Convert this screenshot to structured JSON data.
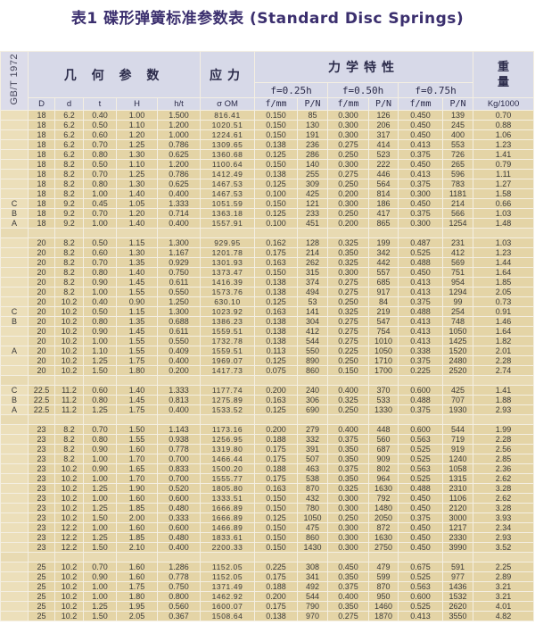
{
  "title": "表1  碟形弹簧标准参数表 (Standard Disc Springs)",
  "header": {
    "standard": "GB/T 1972",
    "geometry": "几 何 参 数",
    "stress": "应力",
    "mechanics": "力学特性",
    "weight": "重量",
    "load_cases": [
      "f=0.25h",
      "f=0.50h",
      "f=0.75h"
    ],
    "columns": [
      "D",
      "d",
      "t",
      "H",
      "h/t",
      "σ OM",
      "f/mm",
      "P/N",
      "f/mm",
      "P/N",
      "f/mm",
      "P/N",
      "Kg/1000"
    ]
  },
  "groups": [
    {
      "rows": [
        [
          "",
          "18",
          "6.2",
          "0.40",
          "1.00",
          "1.500",
          "816.41",
          "0.150",
          "85",
          "0.300",
          "126",
          "0.450",
          "139",
          "0.70"
        ],
        [
          "",
          "18",
          "6.2",
          "0.50",
          "1.10",
          "1.200",
          "1020.51",
          "0.150",
          "130",
          "0.300",
          "206",
          "0.450",
          "245",
          "0.88"
        ],
        [
          "",
          "18",
          "6.2",
          "0.60",
          "1.20",
          "1.000",
          "1224.61",
          "0.150",
          "191",
          "0.300",
          "317",
          "0.450",
          "400",
          "1.06"
        ],
        [
          "",
          "18",
          "6.2",
          "0.70",
          "1.25",
          "0.786",
          "1309.65",
          "0.138",
          "236",
          "0.275",
          "414",
          "0.413",
          "553",
          "1.23"
        ],
        [
          "",
          "18",
          "6.2",
          "0.80",
          "1.30",
          "0.625",
          "1360.68",
          "0.125",
          "286",
          "0.250",
          "523",
          "0.375",
          "726",
          "1.41"
        ],
        [
          "",
          "18",
          "8.2",
          "0.50",
          "1.10",
          "1.200",
          "1100.64",
          "0.150",
          "140",
          "0.300",
          "222",
          "0.450",
          "265",
          "0.79"
        ],
        [
          "",
          "18",
          "8.2",
          "0.70",
          "1.25",
          "0.786",
          "1412.49",
          "0.138",
          "255",
          "0.275",
          "446",
          "0.413",
          "596",
          "1.11"
        ],
        [
          "",
          "18",
          "8.2",
          "0.80",
          "1.30",
          "0.625",
          "1467.53",
          "0.125",
          "309",
          "0.250",
          "564",
          "0.375",
          "783",
          "1.27"
        ],
        [
          "",
          "18",
          "8.2",
          "1.00",
          "1.40",
          "0.400",
          "1467.53",
          "0.100",
          "425",
          "0.200",
          "814",
          "0.300",
          "1181",
          "1.58"
        ],
        [
          "C",
          "18",
          "9.2",
          "0.45",
          "1.05",
          "1.333",
          "1051.59",
          "0.150",
          "121",
          "0.300",
          "186",
          "0.450",
          "214",
          "0.66"
        ],
        [
          "B",
          "18",
          "9.2",
          "0.70",
          "1.20",
          "0.714",
          "1363.18",
          "0.125",
          "233",
          "0.250",
          "417",
          "0.375",
          "566",
          "1.03"
        ],
        [
          "A",
          "18",
          "9.2",
          "1.00",
          "1.40",
          "0.400",
          "1557.91",
          "0.100",
          "451",
          "0.200",
          "865",
          "0.300",
          "1254",
          "1.48"
        ]
      ]
    },
    {
      "rows": [
        [
          "",
          "20",
          "8.2",
          "0.50",
          "1.15",
          "1.300",
          "929.95",
          "0.162",
          "128",
          "0.325",
          "199",
          "0.487",
          "231",
          "1.03"
        ],
        [
          "",
          "20",
          "8.2",
          "0.60",
          "1.30",
          "1.167",
          "1201.78",
          "0.175",
          "214",
          "0.350",
          "342",
          "0.525",
          "412",
          "1.23"
        ],
        [
          "",
          "20",
          "8.2",
          "0.70",
          "1.35",
          "0.929",
          "1301.93",
          "0.163",
          "262",
          "0.325",
          "442",
          "0.488",
          "569",
          "1.44"
        ],
        [
          "",
          "20",
          "8.2",
          "0.80",
          "1.40",
          "0.750",
          "1373.47",
          "0.150",
          "315",
          "0.300",
          "557",
          "0.450",
          "751",
          "1.64"
        ],
        [
          "",
          "20",
          "8.2",
          "0.90",
          "1.45",
          "0.611",
          "1416.39",
          "0.138",
          "374",
          "0.275",
          "685",
          "0.413",
          "954",
          "1.85"
        ],
        [
          "",
          "20",
          "8.2",
          "1.00",
          "1.55",
          "0.550",
          "1573.76",
          "0.138",
          "494",
          "0.275",
          "917",
          "0.413",
          "1294",
          "2.05"
        ],
        [
          "",
          "20",
          "10.2",
          "0.40",
          "0.90",
          "1.250",
          "630.10",
          "0.125",
          "53",
          "0.250",
          "84",
          "0.375",
          "99",
          "0.73"
        ],
        [
          "C",
          "20",
          "10.2",
          "0.50",
          "1.15",
          "1.300",
          "1023.92",
          "0.163",
          "141",
          "0.325",
          "219",
          "0.488",
          "254",
          "0.91"
        ],
        [
          "B",
          "20",
          "10.2",
          "0.80",
          "1.35",
          "0.688",
          "1386.23",
          "0.138",
          "304",
          "0.275",
          "547",
          "0.413",
          "748",
          "1.46"
        ],
        [
          "",
          "20",
          "10.2",
          "0.90",
          "1.45",
          "0.611",
          "1559.51",
          "0.138",
          "412",
          "0.275",
          "754",
          "0.413",
          "1050",
          "1.64"
        ],
        [
          "",
          "20",
          "10.2",
          "1.00",
          "1.55",
          "0.550",
          "1732.78",
          "0.138",
          "544",
          "0.275",
          "1010",
          "0.413",
          "1425",
          "1.82"
        ],
        [
          "A",
          "20",
          "10.2",
          "1.10",
          "1.55",
          "0.409",
          "1559.51",
          "0.113",
          "550",
          "0.225",
          "1050",
          "0.338",
          "1520",
          "2.01"
        ],
        [
          "",
          "20",
          "10.2",
          "1.25",
          "1.75",
          "0.400",
          "1969.07",
          "0.125",
          "890",
          "0.250",
          "1710",
          "0.375",
          "2480",
          "2.28"
        ],
        [
          "",
          "20",
          "10.2",
          "1.50",
          "1.80",
          "0.200",
          "1417.73",
          "0.075",
          "860",
          "0.150",
          "1700",
          "0.225",
          "2520",
          "2.74"
        ]
      ]
    },
    {
      "rows": [
        [
          "C",
          "22.5",
          "11.2",
          "0.60",
          "1.40",
          "1.333",
          "1177.74",
          "0.200",
          "240",
          "0.400",
          "370",
          "0.600",
          "425",
          "1.41"
        ],
        [
          "B",
          "22.5",
          "11.2",
          "0.80",
          "1.45",
          "0.813",
          "1275.89",
          "0.163",
          "306",
          "0.325",
          "533",
          "0.488",
          "707",
          "1.88"
        ],
        [
          "A",
          "22.5",
          "11.2",
          "1.25",
          "1.75",
          "0.400",
          "1533.52",
          "0.125",
          "690",
          "0.250",
          "1330",
          "0.375",
          "1930",
          "2.93"
        ]
      ]
    },
    {
      "rows": [
        [
          "",
          "23",
          "8.2",
          "0.70",
          "1.50",
          "1.143",
          "1173.16",
          "0.200",
          "279",
          "0.400",
          "448",
          "0.600",
          "544",
          "1.99"
        ],
        [
          "",
          "23",
          "8.2",
          "0.80",
          "1.55",
          "0.938",
          "1256.95",
          "0.188",
          "332",
          "0.375",
          "560",
          "0.563",
          "719",
          "2.28"
        ],
        [
          "",
          "23",
          "8.2",
          "0.90",
          "1.60",
          "0.778",
          "1319.80",
          "0.175",
          "391",
          "0.350",
          "687",
          "0.525",
          "919",
          "2.56"
        ],
        [
          "",
          "23",
          "8.2",
          "1.00",
          "1.70",
          "0.700",
          "1466.44",
          "0.175",
          "507",
          "0.350",
          "909",
          "0.525",
          "1240",
          "2.85"
        ],
        [
          "",
          "23",
          "10.2",
          "0.90",
          "1.65",
          "0.833",
          "1500.20",
          "0.188",
          "463",
          "0.375",
          "802",
          "0.563",
          "1058",
          "2.36"
        ],
        [
          "",
          "23",
          "10.2",
          "1.00",
          "1.70",
          "0.700",
          "1555.77",
          "0.175",
          "538",
          "0.350",
          "964",
          "0.525",
          "1315",
          "2.62"
        ],
        [
          "",
          "23",
          "10.2",
          "1.25",
          "1.90",
          "0.520",
          "1805.80",
          "0.163",
          "870",
          "0.325",
          "1630",
          "0.488",
          "2310",
          "3.28"
        ],
        [
          "",
          "23",
          "10.2",
          "1.00",
          "1.60",
          "0.600",
          "1333.51",
          "0.150",
          "432",
          "0.300",
          "792",
          "0.450",
          "1106",
          "2.62"
        ],
        [
          "",
          "23",
          "10.2",
          "1.25",
          "1.85",
          "0.480",
          "1666.89",
          "0.150",
          "780",
          "0.300",
          "1480",
          "0.450",
          "2120",
          "3.28"
        ],
        [
          "",
          "23",
          "10.2",
          "1.50",
          "2.00",
          "0.333",
          "1666.89",
          "0.125",
          "1050",
          "0.250",
          "2050",
          "0.375",
          "3000",
          "3.93"
        ],
        [
          "",
          "23",
          "12.2",
          "1.00",
          "1.60",
          "0.600",
          "1466.89",
          "0.150",
          "475",
          "0.300",
          "872",
          "0.450",
          "1217",
          "2.34"
        ],
        [
          "",
          "23",
          "12.2",
          "1.25",
          "1.85",
          "0.480",
          "1833.61",
          "0.150",
          "860",
          "0.300",
          "1630",
          "0.450",
          "2330",
          "2.93"
        ],
        [
          "",
          "23",
          "12.2",
          "1.50",
          "2.10",
          "0.400",
          "2200.33",
          "0.150",
          "1430",
          "0.300",
          "2750",
          "0.450",
          "3990",
          "3.52"
        ]
      ]
    },
    {
      "rows": [
        [
          "",
          "25",
          "10.2",
          "0.70",
          "1.60",
          "1.286",
          "1152.05",
          "0.225",
          "308",
          "0.450",
          "479",
          "0.675",
          "591",
          "2.25"
        ],
        [
          "",
          "25",
          "10.2",
          "0.90",
          "1.60",
          "0.778",
          "1152.05",
          "0.175",
          "341",
          "0.350",
          "599",
          "0.525",
          "977",
          "2.89"
        ],
        [
          "",
          "25",
          "10.2",
          "1.00",
          "1.75",
          "0.750",
          "1371.49",
          "0.188",
          "492",
          "0.375",
          "870",
          "0.563",
          "1436",
          "3.21"
        ],
        [
          "",
          "25",
          "10.2",
          "1.00",
          "1.80",
          "0.800",
          "1462.92",
          "0.200",
          "544",
          "0.400",
          "950",
          "0.600",
          "1532",
          "3.21"
        ],
        [
          "",
          "25",
          "10.2",
          "1.25",
          "1.95",
          "0.560",
          "1600.07",
          "0.175",
          "790",
          "0.350",
          "1460",
          "0.525",
          "2620",
          "4.01"
        ],
        [
          "",
          "25",
          "10.2",
          "1.50",
          "2.05",
          "0.367",
          "1508.64",
          "0.138",
          "970",
          "0.275",
          "1870",
          "0.413",
          "3550",
          "4.82"
        ]
      ]
    }
  ]
}
